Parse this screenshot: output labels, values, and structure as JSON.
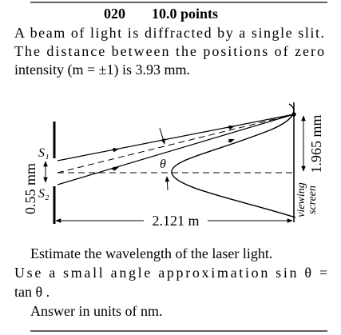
{
  "header": {
    "number": "020",
    "points": "10.0 points"
  },
  "problem": {
    "lines": [
      "A beam of light is diffracted by a single slit.",
      "The distance between the positions of zero",
      "intensity (m = ±1) is 3.93 mm."
    ]
  },
  "diagram": {
    "slit_top": "S₁",
    "slit_bottom": "S₂",
    "angle": "θ",
    "slit_width": "0.55 mm",
    "distance": "2.121 m",
    "offset": "1.965 mm",
    "screen_label": [
      "viewing",
      "screen"
    ]
  },
  "question": {
    "lines": [
      "Estimate the wavelength of the laser light.",
      "Use a small angle approximation sin θ =",
      "tan θ ."
    ]
  },
  "answer": "Answer in units of nm."
}
